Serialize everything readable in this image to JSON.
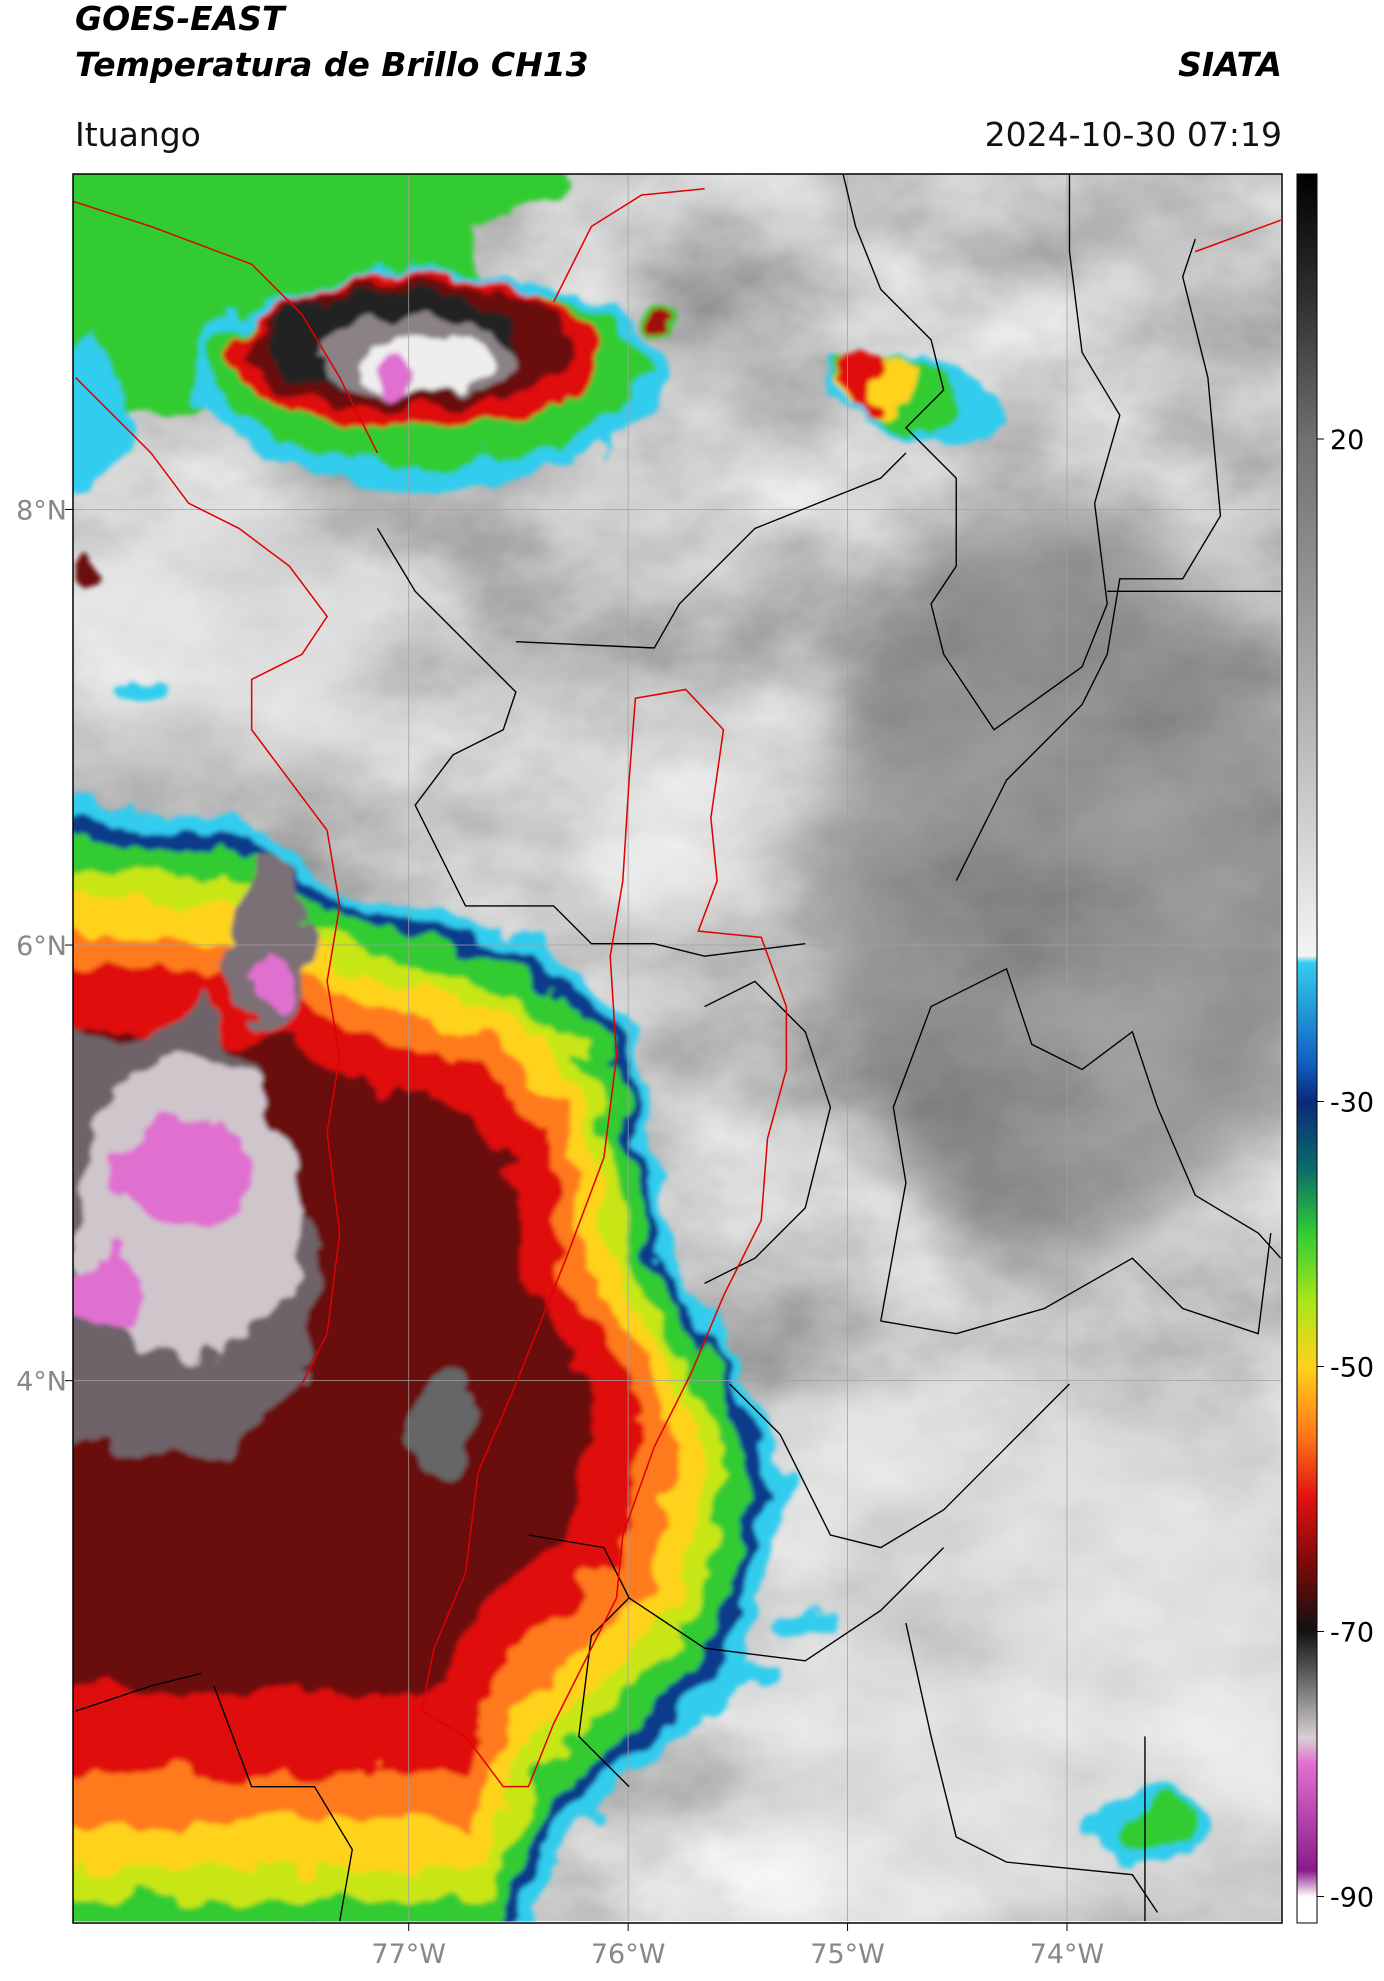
{
  "header": {
    "title": "GOES-EAST",
    "subtitle": "Temperatura de Brillo CH13",
    "source": "SIATA",
    "location": "Ituango",
    "datetime": "2024-10-30 07:19"
  },
  "map": {
    "xlim": [
      -78.53,
      -73.02
    ],
    "ylim": [
      1.51,
      9.54
    ],
    "xticks": [
      {
        "value": -77,
        "label": "77°W"
      },
      {
        "value": -76,
        "label": "76°W"
      },
      {
        "value": -75,
        "label": "75°W"
      },
      {
        "value": -74,
        "label": "74°W"
      }
    ],
    "yticks": [
      {
        "value": 8,
        "label": "8°N"
      },
      {
        "value": 6,
        "label": "6°N"
      },
      {
        "value": 4,
        "label": "4°N"
      }
    ],
    "grid": true
  },
  "colorbar": {
    "lim": [
      -92,
      40
    ],
    "ticks": [
      20,
      -30,
      -50,
      -70,
      -90
    ]
  }
}
